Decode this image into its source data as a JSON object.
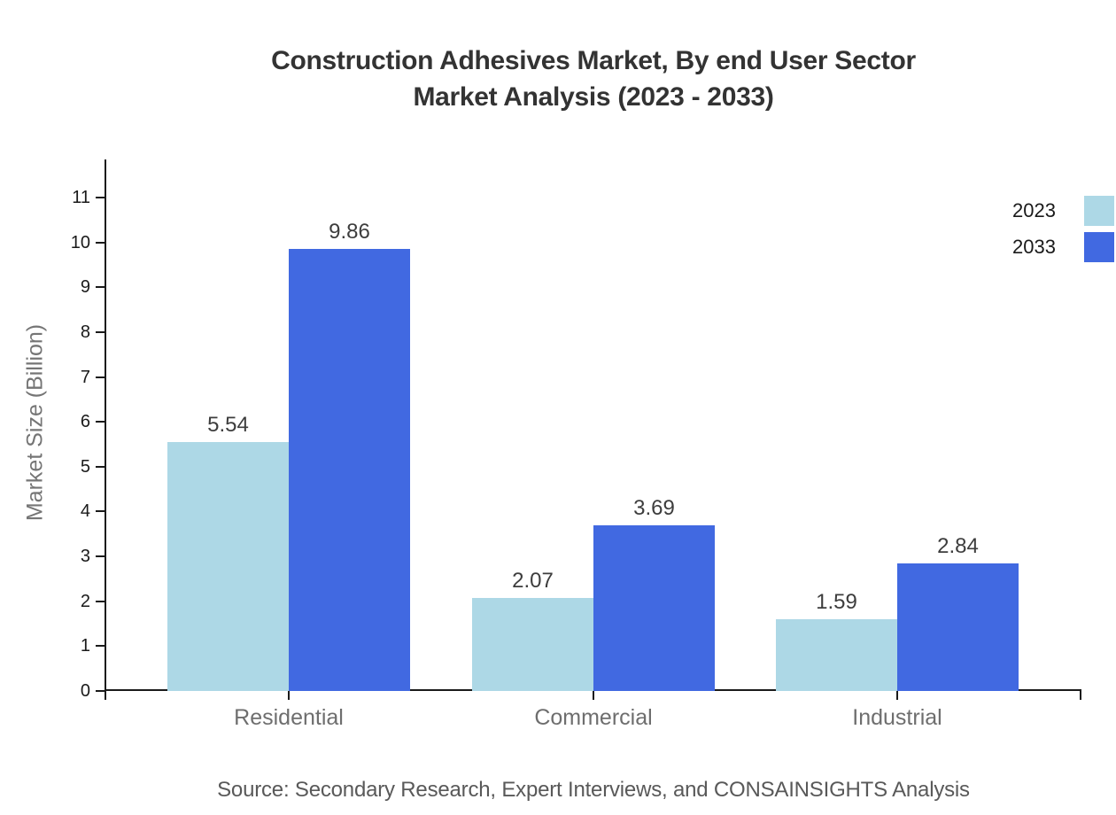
{
  "chart_data": {
    "type": "bar",
    "title": "Construction Adhesives Market, By end User Sector Market Analysis (2023 - 2033)",
    "title_lines": [
      "Construction Adhesives Market, By end User Sector",
      "Market Analysis (2023 - 2033)"
    ],
    "ylabel": "Market Size (Billion)",
    "xlabel": "",
    "categories": [
      "Residential",
      "Commercial",
      "Industrial"
    ],
    "series": [
      {
        "name": "2023",
        "color": "#ADD8E6",
        "values": [
          5.54,
          2.07,
          1.59
        ]
      },
      {
        "name": "2033",
        "color": "#4169E1",
        "values": [
          9.86,
          3.69,
          2.84
        ]
      }
    ],
    "ylim": [
      0,
      11.85
    ],
    "yticks": [
      0,
      1,
      2,
      3,
      4,
      5,
      6,
      7,
      8,
      9,
      10,
      11
    ],
    "grid": false,
    "value_labels": true,
    "legend_position": "top-right",
    "source": "Source: Secondary Research, Expert Interviews, and CONSAINSIGHTS Analysis"
  }
}
